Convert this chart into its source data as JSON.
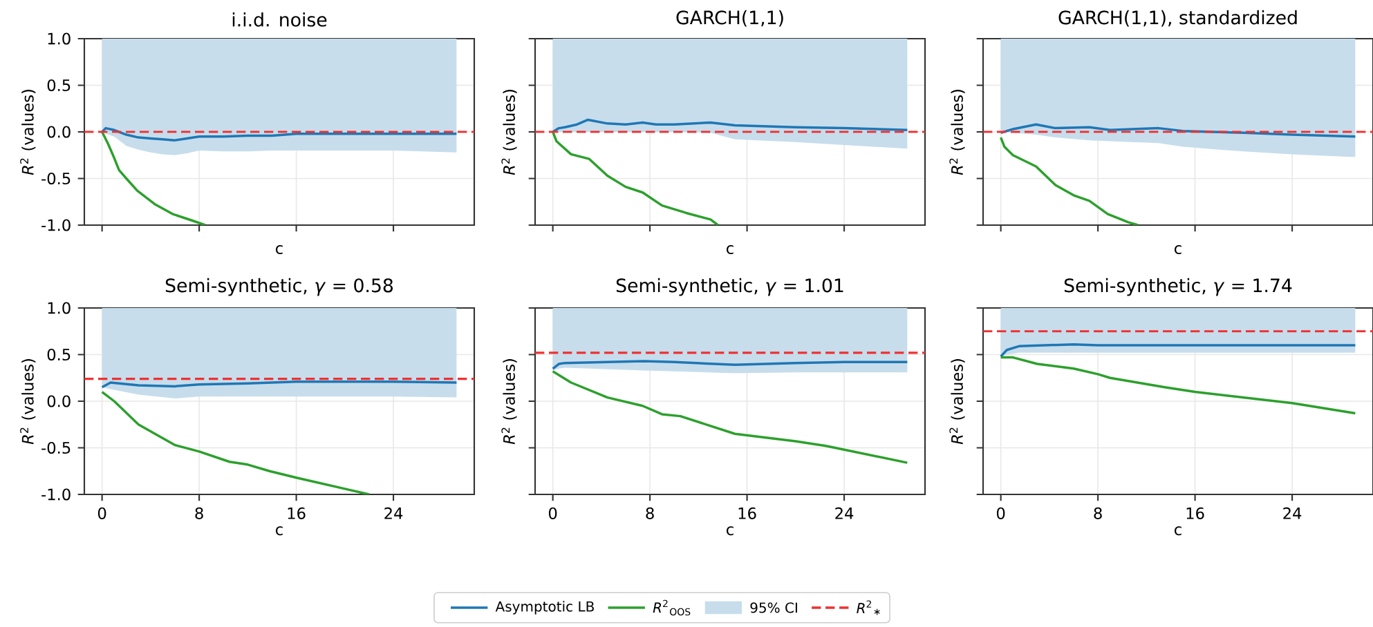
{
  "chart_data": [
    {
      "type": "line",
      "title": "i.i.d. noise",
      "xlabel": "c",
      "ylabel": "*R*$^{2}$ (values)",
      "xlim": [
        -1.46,
        30.66
      ],
      "ylim": [
        -1.0,
        1.0
      ],
      "xticks": [
        0,
        8,
        16,
        24
      ],
      "yticks": [
        {
          "value": -1.0,
          "label": "-1.0"
        },
        {
          "value": -0.5,
          "label": "-0.5"
        },
        {
          "value": 0.0,
          "label": "0.0"
        },
        {
          "value": 0.5,
          "label": "0.5"
        },
        {
          "value": 1.0,
          "label": "1.0"
        }
      ],
      "tick_labels": "y",
      "grid": true,
      "legend": "bottom",
      "annotations": [
        "95% CI"
      ],
      "series": [
        {
          "name": "Asymptotic LB",
          "color": "#1f77b4",
          "x": [
            0,
            0.3,
            1,
            2,
            3,
            4,
            5,
            6,
            7,
            8,
            10,
            12,
            14,
            16,
            20,
            24,
            29.2
          ],
          "values": [
            0.0,
            0.04,
            0.02,
            -0.03,
            -0.06,
            -0.07,
            -0.08,
            -0.09,
            -0.07,
            -0.05,
            -0.05,
            -0.04,
            -0.04,
            -0.02,
            -0.02,
            -0.02,
            -0.02
          ],
          "lower": [
            0.0,
            -0.02,
            -0.05,
            -0.15,
            -0.19,
            -0.22,
            -0.24,
            -0.25,
            -0.23,
            -0.2,
            -0.21,
            -0.21,
            -0.2,
            -0.2,
            -0.2,
            -0.2,
            -0.22
          ],
          "upper": [
            1.0,
            1.0,
            1.0,
            1.0,
            1.0,
            1.0,
            1.0,
            1.0,
            1.0,
            1.0,
            1.0,
            1.0,
            1.0,
            1.0,
            1.0,
            1.0,
            1.0
          ]
        },
        {
          "name": "*R*$^{2}$$_{OOS}$",
          "color": "#2ca02c",
          "x": [
            0,
            0.5,
            1,
            1.4,
            2,
            2.9,
            4.4,
            5.8,
            7.4,
            8.5
          ],
          "values": [
            0.0,
            -0.13,
            -0.28,
            -0.41,
            -0.5,
            -0.63,
            -0.78,
            -0.88,
            -0.95,
            -1.0
          ]
        }
      ],
      "ref_lines": [
        {
          "axis": "y",
          "value": 0.0,
          "label": "*R*$^{2}$$_{∗}$",
          "color": "#f03030",
          "line_style": "dashed"
        }
      ]
    },
    {
      "type": "line",
      "title": "GARCH(1,1)",
      "xlabel": "c",
      "ylabel": "*R*$^{2}$ (values)",
      "xlim": [
        -1.46,
        30.66
      ],
      "ylim": [
        -1.0,
        1.0
      ],
      "xticks": [
        0,
        8,
        16,
        24
      ],
      "yticks": [
        -1.0,
        -0.5,
        0.0,
        0.5,
        1.0
      ],
      "tick_labels": false,
      "grid": true,
      "series": [
        {
          "color": "#1f77b4",
          "x": [
            0,
            0.5,
            1,
            2,
            2.9,
            4.5,
            6,
            7.4,
            8.5,
            10,
            13,
            15,
            20,
            24,
            29.2
          ],
          "values": [
            0.0,
            0.04,
            0.05,
            0.08,
            0.13,
            0.09,
            0.08,
            0.1,
            0.08,
            0.08,
            0.1,
            0.07,
            0.05,
            0.04,
            0.02
          ],
          "lower": [
            0.0,
            0.0,
            0.0,
            0.0,
            0.0,
            0.0,
            0.0,
            0.0,
            0.0,
            0.0,
            -0.01,
            -0.08,
            -0.11,
            -0.14,
            -0.18
          ],
          "upper": [
            1.0,
            1.0,
            1.0,
            1.0,
            1.0,
            1.0,
            1.0,
            1.0,
            1.0,
            1.0,
            1.0,
            1.0,
            1.0,
            1.0,
            1.0
          ]
        },
        {
          "color": "#2ca02c",
          "x": [
            0,
            0.3,
            1.5,
            3,
            4.5,
            6,
            7.4,
            9,
            11,
            13,
            13.6
          ],
          "values": [
            0.0,
            -0.1,
            -0.24,
            -0.29,
            -0.47,
            -0.59,
            -0.65,
            -0.79,
            -0.87,
            -0.94,
            -1.0
          ]
        }
      ],
      "ref_lines": [
        {
          "axis": "y",
          "value": 0.0,
          "color": "#f03030",
          "line_style": "dashed"
        }
      ]
    },
    {
      "type": "line",
      "title": "GARCH(1,1), standardized",
      "xlabel": "c",
      "ylabel": "*R*$^{2}$ (values)",
      "xlim": [
        -1.46,
        30.66
      ],
      "ylim": [
        -1.0,
        1.0
      ],
      "xticks": [
        0,
        8,
        16,
        24
      ],
      "yticks": [
        -1.0,
        -0.5,
        0.0,
        0.5,
        1.0
      ],
      "tick_labels": false,
      "grid": true,
      "series": [
        {
          "color": "#1f77b4",
          "x": [
            0,
            1,
            2.9,
            4.5,
            7.3,
            9,
            13,
            15,
            20,
            24,
            29.2
          ],
          "values": [
            -0.01,
            0.03,
            0.08,
            0.04,
            0.05,
            0.02,
            0.04,
            0.01,
            -0.01,
            -0.03,
            -0.05
          ],
          "lower": [
            0.0,
            -0.01,
            -0.03,
            -0.06,
            -0.09,
            -0.1,
            -0.12,
            -0.16,
            -0.21,
            -0.24,
            -0.27
          ],
          "upper": [
            1.0,
            1.0,
            1.0,
            1.0,
            1.0,
            1.0,
            1.0,
            1.0,
            1.0,
            1.0,
            1.0
          ]
        },
        {
          "color": "#2ca02c",
          "x": [
            0,
            0.3,
            1,
            2.9,
            4.5,
            6,
            7.3,
            8.8,
            10.5,
            11.3
          ],
          "values": [
            -0.06,
            -0.16,
            -0.25,
            -0.37,
            -0.57,
            -0.68,
            -0.74,
            -0.88,
            -0.97,
            -1.0
          ]
        }
      ],
      "ref_lines": [
        {
          "axis": "y",
          "value": 0.0,
          "color": "#f03030",
          "line_style": "dashed"
        }
      ]
    },
    {
      "type": "line",
      "title": "Semi-synthetic, *γ* = 0.58",
      "xlabel": "c",
      "ylabel": "*R*$^{2}$ (values)",
      "xlim": [
        -1.46,
        30.66
      ],
      "ylim": [
        -1.0,
        1.0
      ],
      "xticks": [
        0,
        8,
        16,
        24
      ],
      "yticks": [
        {
          "value": -1.0,
          "label": "-1.0"
        },
        {
          "value": -0.5,
          "label": "-0.5"
        },
        {
          "value": 0.0,
          "label": "0.0"
        },
        {
          "value": 0.5,
          "label": "0.5"
        },
        {
          "value": 1.0,
          "label": "1.0"
        }
      ],
      "grid": true,
      "series": [
        {
          "color": "#1f77b4",
          "x": [
            0,
            0.7,
            3,
            6,
            8,
            12,
            16,
            24,
            29.2
          ],
          "values": [
            0.15,
            0.2,
            0.17,
            0.16,
            0.18,
            0.19,
            0.21,
            0.21,
            0.2
          ],
          "lower": [
            0.15,
            0.13,
            0.07,
            0.03,
            0.05,
            0.05,
            0.05,
            0.05,
            0.04
          ],
          "upper": [
            1.0,
            1.0,
            1.0,
            1.0,
            1.0,
            1.0,
            1.0,
            1.0,
            1.0
          ]
        },
        {
          "color": "#2ca02c",
          "x": [
            0,
            1,
            3,
            6,
            8,
            10.5,
            12,
            13.8,
            16,
            20,
            22
          ],
          "values": [
            0.1,
            0.0,
            -0.25,
            -0.47,
            -0.54,
            -0.65,
            -0.68,
            -0.75,
            -0.82,
            -0.94,
            -1.0
          ]
        }
      ],
      "ref_lines": [
        {
          "axis": "y",
          "value": 0.24,
          "color": "#f03030",
          "line_style": "dashed"
        }
      ]
    },
    {
      "type": "line",
      "title": "Semi-synthetic, *γ* = 1.01",
      "xlabel": "c",
      "ylabel": "*R*$^{2}$ (values)",
      "xlim": [
        -1.46,
        30.66
      ],
      "ylim": [
        -1.0,
        1.0
      ],
      "xticks": [
        0,
        8,
        16,
        24
      ],
      "yticks": [
        -1.0,
        -0.5,
        0.0,
        0.5,
        1.0
      ],
      "tick_labels": "x",
      "grid": true,
      "series": [
        {
          "color": "#1f77b4",
          "x": [
            0,
            0.5,
            1,
            7.5,
            10,
            15,
            20,
            24,
            29.2
          ],
          "values": [
            0.35,
            0.4,
            0.41,
            0.43,
            0.42,
            0.39,
            0.41,
            0.42,
            0.42
          ],
          "lower": [
            0.33,
            0.35,
            0.36,
            0.33,
            0.32,
            0.3,
            0.31,
            0.31,
            0.31
          ],
          "upper": [
            1.0,
            1.0,
            1.0,
            1.0,
            1.0,
            1.0,
            1.0,
            1.0,
            1.0
          ]
        },
        {
          "color": "#2ca02c",
          "x": [
            0,
            1.5,
            4.5,
            7.4,
            9,
            10.5,
            15,
            20,
            22.5,
            29.2
          ],
          "values": [
            0.32,
            0.2,
            0.04,
            -0.05,
            -0.14,
            -0.16,
            -0.35,
            -0.43,
            -0.48,
            -0.66
          ]
        }
      ],
      "ref_lines": [
        {
          "axis": "y",
          "value": 0.52,
          "color": "#f03030",
          "line_style": "dashed"
        }
      ]
    },
    {
      "type": "line",
      "title": "Semi-synthetic, *γ* = 1.74",
      "xlabel": "c",
      "ylabel": "*R*$^{2}$ (values)",
      "xlim": [
        -1.46,
        30.66
      ],
      "ylim": [
        -1.0,
        1.0
      ],
      "xticks": [
        0,
        8,
        16,
        24
      ],
      "yticks": [
        -1.0,
        -0.5,
        0.0,
        0.5,
        1.0
      ],
      "tick_labels": "x",
      "grid": true,
      "series": [
        {
          "color": "#1f77b4",
          "x": [
            0,
            0.5,
            1.5,
            6,
            8,
            29.2
          ],
          "values": [
            0.48,
            0.55,
            0.59,
            0.61,
            0.6,
            0.6
          ],
          "lower": [
            0.48,
            0.5,
            0.52,
            0.52,
            0.52,
            0.52
          ],
          "upper": [
            1.0,
            1.0,
            1.0,
            1.0,
            1.0,
            1.0
          ]
        },
        {
          "color": "#2ca02c",
          "x": [
            0,
            1,
            3,
            6,
            8,
            9,
            13.5,
            16,
            24,
            29.2
          ],
          "values": [
            0.47,
            0.47,
            0.4,
            0.35,
            0.29,
            0.25,
            0.15,
            0.1,
            -0.02,
            -0.13
          ]
        }
      ],
      "ref_lines": [
        {
          "axis": "y",
          "value": 0.75,
          "color": "#f03030",
          "line_style": "dashed"
        }
      ]
    }
  ]
}
